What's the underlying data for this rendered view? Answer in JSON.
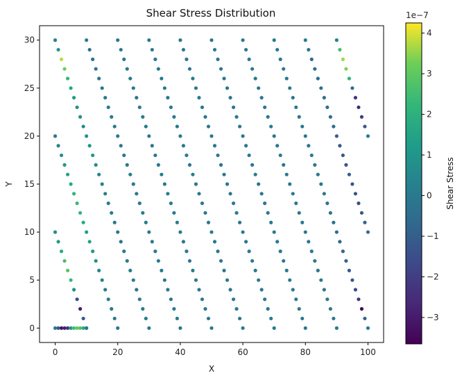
{
  "chart_data": {
    "type": "scatter",
    "title": "Shear Stress Distribution",
    "xlabel": "X",
    "ylabel": "Y",
    "xlim": [
      -5,
      105
    ],
    "ylim": [
      -1.5,
      31.5
    ],
    "xticks": [
      "0",
      "20",
      "40",
      "60",
      "80",
      "100"
    ],
    "yticks": [
      "0",
      "5",
      "10",
      "15",
      "20",
      "25",
      "30"
    ],
    "colorbar": {
      "label": "Shear Stress",
      "scale_label": "1e−7",
      "range": [
        -3.65,
        4.25
      ],
      "ticks": [
        "−3",
        "−2",
        "−1",
        "0",
        "1",
        "2",
        "3",
        "4"
      ],
      "colormap": "viridis"
    },
    "grid": false,
    "marker_size": 5,
    "value_unit": "1e-7",
    "lines": [
      {
        "start": [
          0,
          0
        ],
        "end": [
          10,
          0
        ],
        "steps": 10,
        "values": [
          0,
          -1.2,
          -3.2,
          -2.8,
          -2.3,
          1.0,
          2.5,
          3.0,
          2.8,
          1.8,
          0.6
        ]
      },
      {
        "start": [
          0,
          10
        ],
        "end": [
          10,
          0
        ],
        "steps": 10,
        "values": [
          0.6,
          1.2,
          1.8,
          2.6,
          2.9,
          2.3,
          0.8,
          -1.5,
          -3.0,
          -1.2,
          0
        ]
      },
      {
        "start": [
          0,
          20
        ],
        "end": [
          20,
          0
        ],
        "steps": 20,
        "values": [
          0,
          0.4,
          0.8,
          1.1,
          1.5,
          1.8,
          2.1,
          2.3,
          2.2,
          1.8,
          1.3,
          1.5,
          1.1,
          0.8,
          0.5,
          0.3,
          0.1,
          0,
          -0.1,
          0,
          0
        ]
      },
      {
        "start": [
          0,
          30
        ],
        "end": [
          30,
          0
        ],
        "steps": 30,
        "values": [
          0.2,
          0.9,
          3.8,
          3.2,
          2.3,
          1.6,
          1.2,
          0.9,
          0.8,
          0.7,
          0.9,
          1.0,
          1.0,
          0.6,
          0.4,
          0.3,
          0.2,
          0.1,
          0,
          -0.1,
          -0.1,
          -0.1,
          0,
          0,
          0,
          0,
          0,
          0,
          0,
          0,
          0
        ]
      },
      {
        "start": [
          10,
          30
        ],
        "end": [
          40,
          0
        ],
        "steps": 30,
        "values": [
          0.1,
          -0.4,
          -0.4,
          -0.2,
          -0.1,
          0,
          0,
          0,
          0,
          0,
          0,
          0,
          0,
          0,
          0,
          0,
          0,
          0,
          0,
          0,
          0,
          0,
          0,
          0,
          0,
          0,
          0,
          0,
          0,
          0,
          0
        ]
      },
      {
        "start": [
          20,
          30
        ],
        "end": [
          50,
          0
        ],
        "steps": 30,
        "values": [
          0,
          0,
          0,
          0,
          0,
          0,
          0,
          0,
          0,
          0,
          0,
          0,
          0,
          0,
          0,
          0,
          0,
          0,
          0,
          0,
          0,
          0,
          0,
          0,
          0,
          0,
          0,
          0,
          0,
          0,
          0
        ]
      },
      {
        "start": [
          30,
          30
        ],
        "end": [
          60,
          0
        ],
        "steps": 30,
        "values": [
          0,
          0,
          0,
          0,
          0,
          0,
          0,
          0,
          0,
          0,
          0,
          0,
          0,
          0,
          0,
          0,
          0,
          0,
          0,
          0,
          0,
          0,
          0,
          0,
          0,
          0,
          0,
          0,
          0,
          0,
          0
        ]
      },
      {
        "start": [
          40,
          30
        ],
        "end": [
          70,
          0
        ],
        "steps": 30,
        "values": [
          0,
          0,
          0,
          0,
          0,
          0,
          0,
          0,
          0,
          0,
          0,
          0,
          0,
          0,
          0,
          0,
          0,
          0,
          0,
          0,
          0,
          0,
          0,
          0,
          0,
          0,
          0,
          0,
          0,
          0,
          0
        ]
      },
      {
        "start": [
          50,
          30
        ],
        "end": [
          80,
          0
        ],
        "steps": 30,
        "values": [
          0,
          0,
          0,
          0,
          0,
          0,
          0,
          0,
          0,
          0,
          0,
          0,
          0,
          0,
          0,
          0,
          0,
          0,
          0,
          0,
          0,
          0,
          0,
          0,
          0,
          0,
          0,
          0,
          0,
          0,
          0
        ]
      },
      {
        "start": [
          60,
          30
        ],
        "end": [
          90,
          0
        ],
        "steps": 30,
        "values": [
          0,
          0,
          0,
          0,
          0,
          0,
          0,
          0,
          0,
          0,
          0,
          0,
          0,
          0,
          0,
          0,
          0,
          0,
          0,
          0,
          0,
          0,
          0,
          0,
          0,
          0,
          0,
          0,
          0,
          0,
          0
        ]
      },
      {
        "start": [
          70,
          30
        ],
        "end": [
          100,
          0
        ],
        "steps": 30,
        "values": [
          0,
          0,
          0,
          0,
          0,
          0,
          0,
          0,
          0,
          0,
          0,
          0,
          0,
          0,
          0,
          0,
          0,
          -0.1,
          -0.2,
          -0.3,
          -0.5,
          -0.6,
          -0.7,
          -0.9,
          -1.1,
          -1.3,
          -1.6,
          -2.2,
          -3.5,
          -0.8,
          0
        ]
      },
      {
        "start": [
          80,
          30
        ],
        "end": [
          100,
          10
        ],
        "steps": 20,
        "values": [
          0.1,
          -0.2,
          -0.5,
          -0.5,
          -0.4,
          -0.3,
          -0.3,
          -0.3,
          -0.4,
          -0.5,
          -1.0,
          -1.2,
          -1.3,
          -1.2,
          -1.1,
          -1.2,
          -1.4,
          -1.5,
          -1.2,
          -0.8,
          -0.4
        ]
      },
      {
        "start": [
          90,
          30
        ],
        "end": [
          100,
          20
        ],
        "steps": 10,
        "values": [
          0.3,
          2.5,
          3.6,
          3.4,
          2.2,
          -0.5,
          -2.2,
          -2.6,
          -2.0,
          -1.1,
          0
        ]
      }
    ]
  }
}
